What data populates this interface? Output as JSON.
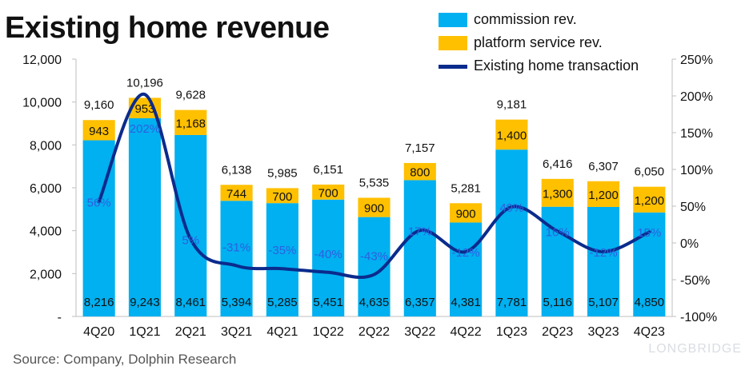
{
  "title": "Existing home revenue",
  "source": "Source: Company, Dolphin Research",
  "watermark": "LONGBRIDGE",
  "colors": {
    "commission": "#00B0F0",
    "platform": "#FFC000",
    "line": "#0B2B8C",
    "pct_label": "#2E5FE0"
  },
  "legend": {
    "commission": "commission rev.",
    "platform": "platform service rev.",
    "line": "Existing home transaction"
  },
  "chart_data": {
    "type": "bar",
    "stacked": true,
    "categories": [
      "4Q20",
      "1Q21",
      "2Q21",
      "3Q21",
      "4Q21",
      "1Q22",
      "2Q22",
      "3Q22",
      "4Q22",
      "1Q23",
      "2Q23",
      "3Q23",
      "4Q23"
    ],
    "series": [
      {
        "name": "commission rev.",
        "values": [
          8216,
          9243,
          8461,
          5394,
          5285,
          5451,
          4635,
          6357,
          4381,
          7781,
          5116,
          5107,
          4850
        ]
      },
      {
        "name": "platform service rev.",
        "values": [
          943,
          953,
          1168,
          744,
          700,
          700,
          900,
          800,
          900,
          1400,
          1300,
          1200,
          1200
        ]
      }
    ],
    "totals": [
      9160,
      10196,
      9628,
      6138,
      5985,
      6151,
      5535,
      7157,
      5281,
      9181,
      6416,
      6307,
      6050
    ],
    "line_series": {
      "name": "Existing home transaction",
      "axis": "right",
      "values": [
        56,
        202,
        5,
        -31,
        -35,
        -40,
        -43,
        17,
        -12,
        49,
        16,
        -12,
        15
      ],
      "labels": [
        "56%",
        "202%",
        "5%",
        "-31%",
        "-35%",
        "-40%",
        "-43%",
        "17%",
        "-12%",
        "49%",
        "16%",
        "-12%",
        "15%"
      ]
    },
    "y_left": {
      "min": 0,
      "max": 12000,
      "ticks": [
        "-",
        "2,000",
        "4,000",
        "6,000",
        "8,000",
        "10,000",
        "12,000"
      ]
    },
    "y_right": {
      "min": -100,
      "max": 250,
      "ticks": [
        "-100%",
        "-50%",
        "0%",
        "50%",
        "100%",
        "150%",
        "200%",
        "250%"
      ]
    },
    "grid": false
  }
}
